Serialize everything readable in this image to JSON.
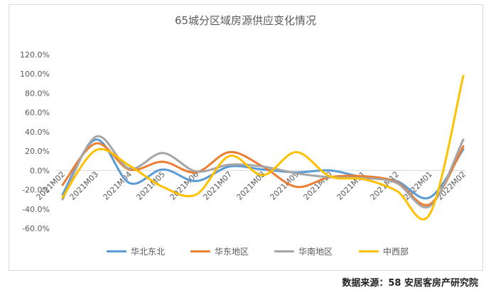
{
  "chart_data": {
    "type": "line",
    "title": "65城分区域房源供应变化情况",
    "source": "数据来源：58 安居客房产研究院",
    "categories": [
      "2021M02",
      "2021M03",
      "2021M04",
      "2021M05",
      "2021M06",
      "2021M07",
      "2021M08",
      "2021M09",
      "2021M10",
      "2021M11",
      "2021M12",
      "2022M01",
      "2022M02"
    ],
    "ylim": [
      -60,
      120
    ],
    "yticks": [
      -60,
      -40,
      -20,
      0,
      20,
      40,
      60,
      80,
      100,
      120
    ],
    "ytick_labels": [
      "-60.0%",
      "-40.0%",
      "-20.0%",
      "0.0%",
      "20.0%",
      "40.0%",
      "60.0%",
      "80.0%",
      "100.0%",
      "120.0%"
    ],
    "grid": false,
    "legend_position": "bottom",
    "series": [
      {
        "name": "华北东北",
        "color": "#5b9bd5",
        "values": [
          -25,
          32,
          -13,
          1,
          -11,
          4,
          1,
          -2,
          0,
          -7,
          -11,
          -28,
          22
        ]
      },
      {
        "name": "华东地区",
        "color": "#ed7d31",
        "values": [
          -15,
          28,
          1,
          9,
          -2,
          19,
          4,
          -17,
          -7,
          -6,
          -12,
          -35,
          25
        ]
      },
      {
        "name": "华南地区",
        "color": "#a5a5a5",
        "values": [
          -30,
          35,
          2,
          18,
          -1,
          6,
          4,
          -3,
          -7,
          -8,
          -13,
          -37,
          32
        ]
      },
      {
        "name": "中西部",
        "color": "#ffc000",
        "values": [
          -28,
          21,
          5,
          -17,
          -25,
          15,
          -5,
          19,
          -6,
          -9,
          -21,
          -45,
          98
        ]
      }
    ]
  }
}
